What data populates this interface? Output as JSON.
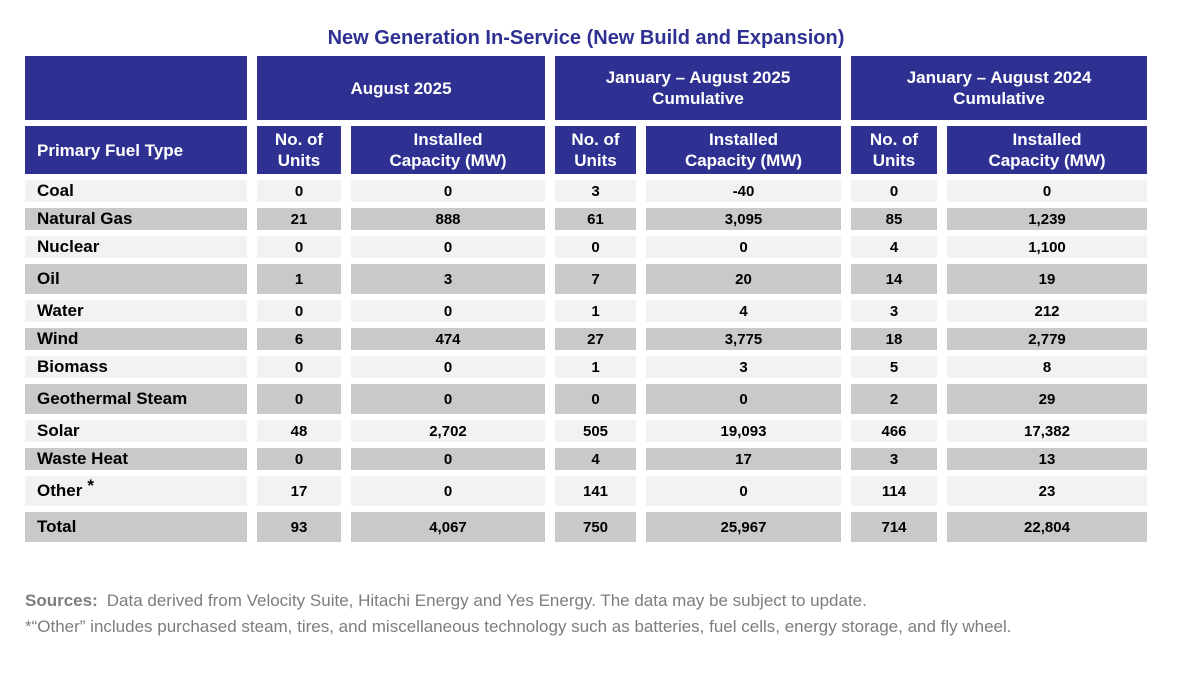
{
  "chart_data": {
    "type": "table",
    "title": "New Generation In-Service (New Build and Expansion)",
    "row_header": "Primary Fuel Type",
    "groups": [
      "August 2025",
      "January – August 2025\nCumulative",
      "January – August 2024\nCumulative"
    ],
    "sub_headers": [
      "No. of\nUnits",
      "Installed\nCapacity (MW)"
    ],
    "columns": [
      "Primary Fuel Type",
      "No. of Units (Aug 2025)",
      "Installed Capacity MW (Aug 2025)",
      "No. of Units (Jan–Aug 2025)",
      "Installed Capacity MW (Jan–Aug 2025)",
      "No. of Units (Jan–Aug 2024)",
      "Installed Capacity MW (Jan–Aug 2024)"
    ],
    "rows": [
      {
        "label": "Coal",
        "suffix": "",
        "shade": "light",
        "tall": false,
        "values": [
          "0",
          "0",
          "3",
          "-40",
          "0",
          "0"
        ]
      },
      {
        "label": "Natural Gas",
        "suffix": "",
        "shade": "dark",
        "tall": false,
        "values": [
          "21",
          "888",
          "61",
          "3,095",
          "85",
          "1,239"
        ]
      },
      {
        "label": "Nuclear",
        "suffix": "",
        "shade": "light",
        "tall": false,
        "values": [
          "0",
          "0",
          "0",
          "0",
          "4",
          "1,100"
        ]
      },
      {
        "label": "Oil",
        "suffix": "",
        "shade": "dark",
        "tall": true,
        "values": [
          "1",
          "3",
          "7",
          "20",
          "14",
          "19"
        ]
      },
      {
        "label": "Water",
        "suffix": "",
        "shade": "light",
        "tall": false,
        "values": [
          "0",
          "0",
          "1",
          "4",
          "3",
          "212"
        ]
      },
      {
        "label": "Wind",
        "suffix": "",
        "shade": "dark",
        "tall": false,
        "values": [
          "6",
          "474",
          "27",
          "3,775",
          "18",
          "2,779"
        ]
      },
      {
        "label": "Biomass",
        "suffix": "",
        "shade": "light",
        "tall": false,
        "values": [
          "0",
          "0",
          "1",
          "3",
          "5",
          "8"
        ]
      },
      {
        "label": "Geothermal Steam",
        "suffix": "",
        "shade": "dark",
        "tall": true,
        "values": [
          "0",
          "0",
          "0",
          "0",
          "2",
          "29"
        ]
      },
      {
        "label": "Solar",
        "suffix": "",
        "shade": "light",
        "tall": false,
        "values": [
          "48",
          "2,702",
          "505",
          "19,093",
          "466",
          "17,382"
        ]
      },
      {
        "label": "Waste Heat",
        "suffix": "",
        "shade": "dark",
        "tall": false,
        "values": [
          "0",
          "0",
          "4",
          "17",
          "3",
          "13"
        ]
      },
      {
        "label": "Other",
        "suffix": "*",
        "shade": "light",
        "tall": true,
        "values": [
          "17",
          "0",
          "141",
          "0",
          "114",
          "23"
        ]
      },
      {
        "label": "Total",
        "suffix": "",
        "shade": "dark",
        "tall": true,
        "values": [
          "93",
          "4,067",
          "750",
          "25,967",
          "714",
          "22,804"
        ]
      }
    ]
  },
  "footer": {
    "sources_label": "Sources:",
    "sources_text": "Data derived from Velocity Suite, Hitachi Energy and Yes Energy.  The data may be subject to update.",
    "footnote": "*“Other” includes purchased steam, tires, and miscellaneous technology such as batteries, fuel cells, energy storage, and fly wheel."
  },
  "colors": {
    "header_blue": "#2E3192",
    "row_light": "#F2F2F2",
    "row_dark": "#C9C9C9",
    "title_blue": "#2E3192",
    "footer_gray": "#7D7D7D"
  }
}
